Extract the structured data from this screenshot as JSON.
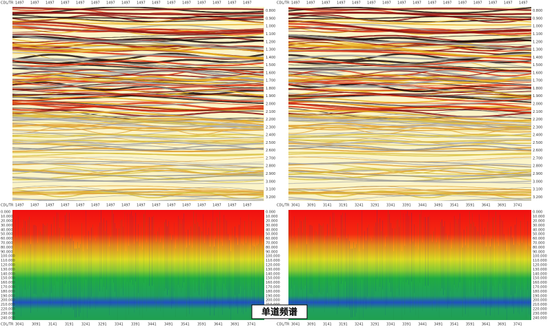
{
  "top_header": {
    "corner": "CDL/TR",
    "traces": [
      "1497",
      "1497",
      "1497",
      "1497",
      "1497",
      "1497",
      "1497",
      "1497",
      "1497",
      "1497",
      "1497",
      "1497",
      "1497",
      "1497",
      "1497",
      "1497"
    ]
  },
  "time_axis": [
    "0.800",
    "0.900",
    "1.000",
    "1.100",
    "1.200",
    "1.300",
    "1.400",
    "1.500",
    "1.600",
    "1.700",
    "1.800",
    "1.900",
    "2.000",
    "2.100",
    "2.200",
    "2.300",
    "2.400",
    "2.500",
    "2.600",
    "2.700",
    "2.800",
    "2.900",
    "3.000",
    "3.100",
    "3.200"
  ],
  "bottom_header": {
    "corner": "CDL/TR",
    "traces": [
      "3041",
      "3091",
      "3141",
      "3191",
      "3241",
      "3291",
      "3341",
      "3391",
      "3441",
      "3491",
      "3541",
      "3591",
      "3641",
      "3691",
      "3741"
    ]
  },
  "spectrum_axis": [
    "0.000",
    "10.000",
    "20.000",
    "30.000",
    "40.000",
    "50.000",
    "60.000",
    "70.000",
    "80.000",
    "90.000",
    "100.000",
    "110.000",
    "120.000",
    "130.000",
    "140.000",
    "150.000",
    "160.000",
    "170.000",
    "180.000",
    "190.000",
    "200.000",
    "210.000",
    "220.000",
    "230.000",
    "240.000"
  ],
  "caption": "单道频谱"
}
